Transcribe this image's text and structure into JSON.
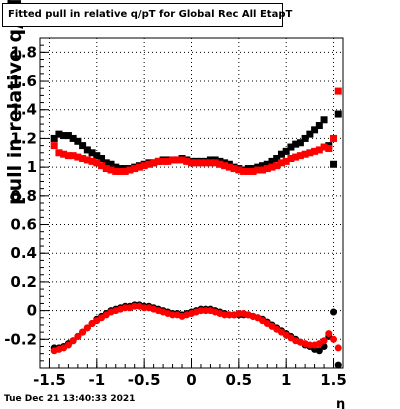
{
  "timestamp": "Tue Dec 21 13:40:33 2021",
  "chart_data": {
    "type": "scatter",
    "title": "Fitted pull in relative q/pT for Global Rec All EtapT",
    "xlabel": "η",
    "ylabel": "pull in relative q/pT",
    "xlim": [
      -1.6,
      1.6
    ],
    "ylim": [
      -0.4,
      1.9
    ],
    "grid": true,
    "x_tick_labels": [
      "-1.5",
      "-1",
      "-0.5",
      "0",
      "0.5",
      "1",
      "1.5"
    ],
    "x_tick_values": [
      -1.5,
      -1,
      -0.5,
      0,
      0.5,
      1,
      1.5
    ],
    "y_tick_labels": [
      "-0.2",
      "0",
      "0.2",
      "0.4",
      "0.6",
      "0.8",
      "1",
      "1.2",
      "1.4",
      "1.6",
      "1.8"
    ],
    "y_tick_values": [
      -0.2,
      0,
      0.2,
      0.4,
      0.6,
      0.8,
      1.0,
      1.2,
      1.4,
      1.6,
      1.8
    ],
    "series": [
      {
        "color": "#000000",
        "marker": "square",
        "x": [
          -1.45,
          -1.4,
          -1.35,
          -1.3,
          -1.25,
          -1.2,
          -1.15,
          -1.1,
          -1.05,
          -1.0,
          -0.95,
          -0.9,
          -0.85,
          -0.8,
          -0.75,
          -0.7,
          -0.65,
          -0.6,
          -0.55,
          -0.5,
          -0.45,
          -0.4,
          -0.35,
          -0.3,
          -0.25,
          -0.2,
          -0.15,
          -0.1,
          -0.05,
          0.0,
          0.05,
          0.1,
          0.15,
          0.2,
          0.25,
          0.3,
          0.35,
          0.4,
          0.45,
          0.5,
          0.55,
          0.6,
          0.65,
          0.7,
          0.75,
          0.8,
          0.85,
          0.9,
          0.95,
          1.0,
          1.05,
          1.1,
          1.15,
          1.2,
          1.25,
          1.3,
          1.35,
          1.4,
          1.45,
          1.5,
          1.55
        ],
        "y": [
          1.2,
          1.23,
          1.22,
          1.22,
          1.2,
          1.18,
          1.15,
          1.12,
          1.1,
          1.08,
          1.06,
          1.03,
          1.02,
          1.0,
          0.99,
          0.99,
          0.99,
          1.0,
          1.01,
          1.02,
          1.03,
          1.03,
          1.04,
          1.05,
          1.05,
          1.05,
          1.05,
          1.06,
          1.05,
          1.04,
          1.04,
          1.04,
          1.04,
          1.05,
          1.05,
          1.04,
          1.03,
          1.02,
          1.0,
          0.99,
          0.98,
          0.99,
          0.99,
          1.0,
          1.01,
          1.02,
          1.04,
          1.06,
          1.09,
          1.11,
          1.14,
          1.16,
          1.17,
          1.2,
          1.23,
          1.26,
          1.29,
          1.33,
          1.15,
          1.02,
          1.37
        ]
      },
      {
        "color": "#ff0000",
        "marker": "square",
        "x": [
          -1.45,
          -1.4,
          -1.35,
          -1.3,
          -1.25,
          -1.2,
          -1.15,
          -1.1,
          -1.05,
          -1.0,
          -0.95,
          -0.9,
          -0.85,
          -0.8,
          -0.75,
          -0.7,
          -0.65,
          -0.6,
          -0.55,
          -0.5,
          -0.45,
          -0.4,
          -0.35,
          -0.3,
          -0.25,
          -0.2,
          -0.15,
          -0.1,
          -0.05,
          0.0,
          0.05,
          0.1,
          0.15,
          0.2,
          0.25,
          0.3,
          0.35,
          0.4,
          0.45,
          0.5,
          0.55,
          0.6,
          0.65,
          0.7,
          0.75,
          0.8,
          0.85,
          0.9,
          0.95,
          1.0,
          1.05,
          1.1,
          1.15,
          1.2,
          1.25,
          1.3,
          1.35,
          1.4,
          1.45,
          1.5,
          1.55
        ],
        "y": [
          1.15,
          1.1,
          1.09,
          1.08,
          1.08,
          1.07,
          1.06,
          1.05,
          1.04,
          1.03,
          1.01,
          0.99,
          0.98,
          0.97,
          0.97,
          0.97,
          0.98,
          0.99,
          1.0,
          1.01,
          1.02,
          1.03,
          1.04,
          1.04,
          1.04,
          1.05,
          1.05,
          1.05,
          1.04,
          1.03,
          1.03,
          1.03,
          1.03,
          1.03,
          1.03,
          1.02,
          1.01,
          1.0,
          0.99,
          0.98,
          0.97,
          0.97,
          0.97,
          0.98,
          0.98,
          0.99,
          1.0,
          1.01,
          1.03,
          1.04,
          1.06,
          1.07,
          1.08,
          1.09,
          1.1,
          1.11,
          1.12,
          1.14,
          1.13,
          1.2,
          1.53
        ]
      },
      {
        "color": "#000000",
        "marker": "circle",
        "x": [
          -1.45,
          -1.4,
          -1.35,
          -1.3,
          -1.25,
          -1.2,
          -1.15,
          -1.1,
          -1.05,
          -1.0,
          -0.95,
          -0.9,
          -0.85,
          -0.8,
          -0.75,
          -0.7,
          -0.65,
          -0.6,
          -0.55,
          -0.5,
          -0.45,
          -0.4,
          -0.35,
          -0.3,
          -0.25,
          -0.2,
          -0.15,
          -0.1,
          -0.05,
          0.0,
          0.05,
          0.1,
          0.15,
          0.2,
          0.25,
          0.3,
          0.35,
          0.4,
          0.45,
          0.5,
          0.55,
          0.6,
          0.65,
          0.7,
          0.75,
          0.8,
          0.85,
          0.9,
          0.95,
          1.0,
          1.05,
          1.1,
          1.15,
          1.2,
          1.25,
          1.3,
          1.35,
          1.4,
          1.45,
          1.5,
          1.55
        ],
        "y": [
          -0.26,
          -0.26,
          -0.25,
          -0.23,
          -0.21,
          -0.18,
          -0.15,
          -0.12,
          -0.09,
          -0.06,
          -0.04,
          -0.02,
          0.0,
          0.01,
          0.02,
          0.03,
          0.03,
          0.04,
          0.04,
          0.03,
          0.03,
          0.02,
          0.01,
          0.0,
          -0.01,
          -0.02,
          -0.02,
          -0.03,
          -0.02,
          -0.01,
          0.0,
          0.01,
          0.01,
          0.01,
          0.0,
          -0.01,
          -0.02,
          -0.03,
          -0.03,
          -0.03,
          -0.03,
          -0.03,
          -0.04,
          -0.05,
          -0.06,
          -0.08,
          -0.1,
          -0.12,
          -0.14,
          -0.16,
          -0.18,
          -0.2,
          -0.22,
          -0.24,
          -0.25,
          -0.27,
          -0.28,
          -0.25,
          -0.18,
          -0.01,
          -0.38
        ]
      },
      {
        "color": "#ff0000",
        "marker": "circle",
        "x": [
          -1.45,
          -1.4,
          -1.35,
          -1.3,
          -1.25,
          -1.2,
          -1.15,
          -1.1,
          -1.05,
          -1.0,
          -0.95,
          -0.9,
          -0.85,
          -0.8,
          -0.75,
          -0.7,
          -0.65,
          -0.6,
          -0.55,
          -0.5,
          -0.45,
          -0.4,
          -0.35,
          -0.3,
          -0.25,
          -0.2,
          -0.15,
          -0.1,
          -0.05,
          0.0,
          0.05,
          0.1,
          0.15,
          0.2,
          0.25,
          0.3,
          0.35,
          0.4,
          0.45,
          0.5,
          0.55,
          0.6,
          0.65,
          0.7,
          0.75,
          0.8,
          0.85,
          0.9,
          0.95,
          1.0,
          1.05,
          1.1,
          1.15,
          1.2,
          1.25,
          1.3,
          1.35,
          1.4,
          1.45,
          1.5,
          1.55
        ],
        "y": [
          -0.28,
          -0.27,
          -0.26,
          -0.24,
          -0.21,
          -0.18,
          -0.15,
          -0.12,
          -0.09,
          -0.07,
          -0.05,
          -0.03,
          -0.01,
          0.0,
          0.01,
          0.02,
          0.02,
          0.03,
          0.03,
          0.02,
          0.02,
          0.01,
          0.0,
          -0.01,
          -0.02,
          -0.03,
          -0.03,
          -0.04,
          -0.03,
          -0.02,
          -0.01,
          0.0,
          0.0,
          0.0,
          -0.01,
          -0.02,
          -0.03,
          -0.03,
          -0.03,
          -0.02,
          -0.02,
          -0.03,
          -0.04,
          -0.05,
          -0.07,
          -0.09,
          -0.11,
          -0.13,
          -0.15,
          -0.17,
          -0.19,
          -0.21,
          -0.22,
          -0.23,
          -0.24,
          -0.24,
          -0.23,
          -0.21,
          -0.16,
          -0.2,
          -0.26
        ]
      }
    ]
  }
}
